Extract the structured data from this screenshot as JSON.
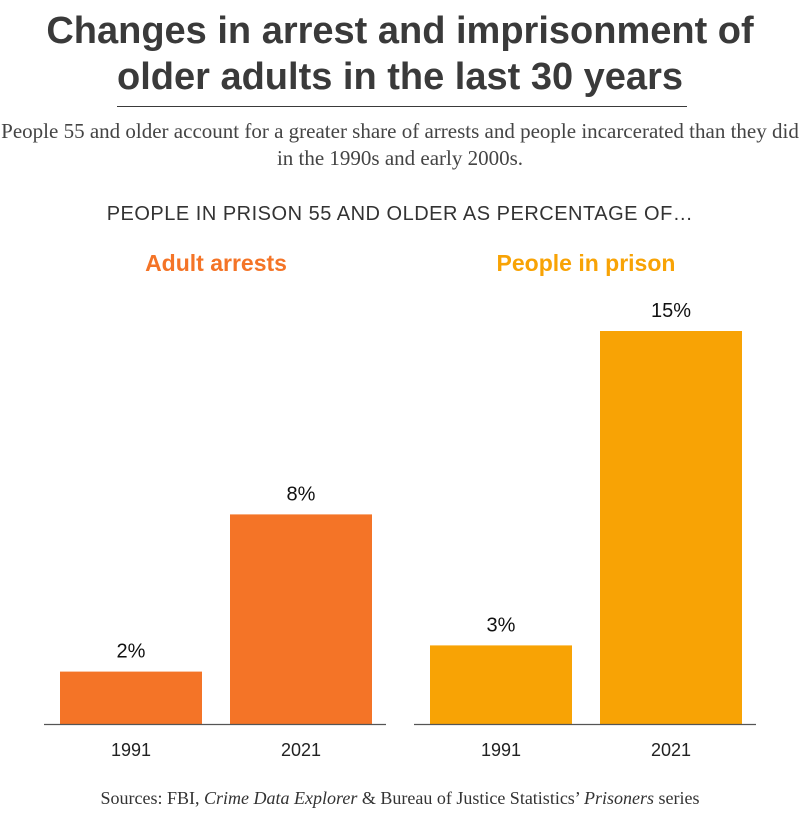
{
  "title": "Changes in arrest and imprisonment of older adults in the last 30 years",
  "subtitle": "People 55 and older account for a greater share of arrests and people incarcerated than they did in the 1990s and early 2000s.",
  "heading": "PEOPLE IN PRISON 55 AND OLDER AS PERCENTAGE OF…",
  "source": {
    "prefix": "Sources: FBI, ",
    "italic1": "Crime Data Explorer",
    "middle": " & Bureau of Justice Statistics’ ",
    "italic2": "Prisoners",
    "suffix": " series"
  },
  "colors": {
    "arrests": "#F47427",
    "prison": "#F8A305",
    "axis": "#555555"
  },
  "chart_data": [
    {
      "type": "bar",
      "title": "Adult arrests",
      "categories": [
        "1991",
        "2021"
      ],
      "values": [
        2,
        8
      ],
      "data_labels": [
        "2%",
        "8%"
      ],
      "unit": "%",
      "ylim": [
        0,
        16
      ],
      "grid": false
    },
    {
      "type": "bar",
      "title": "People in prison",
      "categories": [
        "1991",
        "2021"
      ],
      "values": [
        3,
        15
      ],
      "data_labels": [
        "3%",
        "15%"
      ],
      "unit": "%",
      "ylim": [
        0,
        16
      ],
      "grid": false
    }
  ]
}
